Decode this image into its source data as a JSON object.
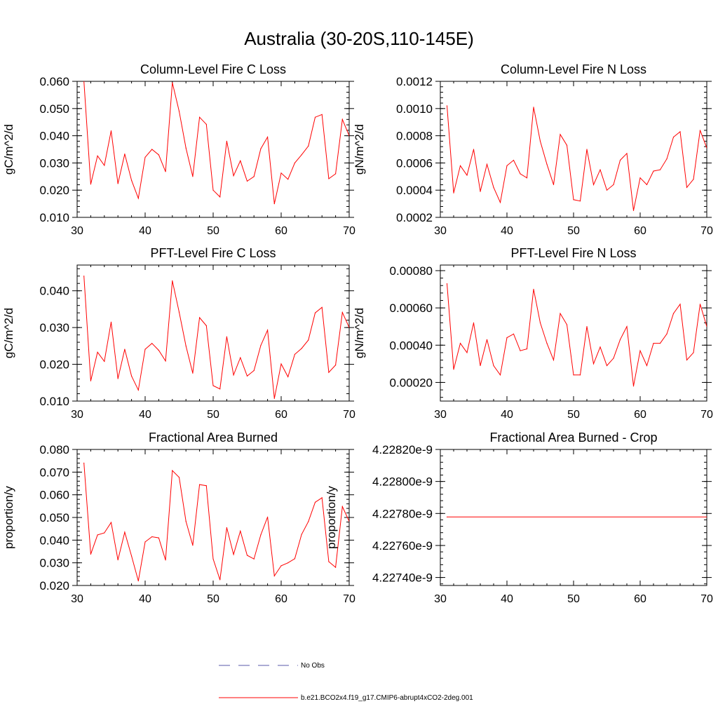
{
  "figure": {
    "title": "Australia (30-20S,110-145E)"
  },
  "legend": {
    "entries": [
      {
        "label": "No Obs",
        "color": "#5a5aa8",
        "style": "dashed"
      },
      {
        "label": "b.e21.BCO2x4.f19_g17.CMIP6-abrupt4xCO2-2deg.001",
        "color": "#ff0000",
        "style": "solid"
      }
    ]
  },
  "chart_data": [
    {
      "type": "line",
      "title": "Column-Level Fire C Loss",
      "xlabel": "",
      "ylabel": "gC/m^2/d",
      "xlim": [
        30,
        70
      ],
      "ylim": [
        0.01,
        0.06
      ],
      "xticks": [
        30,
        40,
        50,
        60,
        70
      ],
      "xtick_labels": [
        "30",
        "40",
        "50",
        "60",
        "70"
      ],
      "yticks": [
        0.01,
        0.02,
        0.03,
        0.04,
        0.05,
        0.06
      ],
      "ytick_labels": [
        "0.010",
        "0.020",
        "0.030",
        "0.040",
        "0.050",
        "0.060"
      ],
      "series": [
        {
          "name": "b.e21.BCO2x4.f19_g17.CMIP6-abrupt4xCO2-2deg.001",
          "color": "#ff0000",
          "x": [
            31,
            32,
            33,
            34,
            35,
            36,
            37,
            38,
            39,
            40,
            41,
            42,
            43,
            44,
            45,
            46,
            47,
            48,
            49,
            50,
            51,
            52,
            53,
            54,
            55,
            56,
            57,
            58,
            59,
            60,
            61,
            62,
            63,
            64,
            65,
            66,
            67,
            68,
            69,
            70
          ],
          "values": [
            0.06,
            0.0222,
            0.0326,
            0.0291,
            0.0418,
            0.0224,
            0.0333,
            0.0236,
            0.017,
            0.0321,
            0.035,
            0.033,
            0.0268,
            0.0595,
            0.049,
            0.0355,
            0.025,
            0.0468,
            0.0442,
            0.02,
            0.0175,
            0.038,
            0.0253,
            0.0308,
            0.0233,
            0.025,
            0.0352,
            0.0395,
            0.015,
            0.0263,
            0.024,
            0.03,
            0.033,
            0.0362,
            0.0468,
            0.0478,
            0.0242,
            0.026,
            0.046,
            0.04
          ]
        }
      ]
    },
    {
      "type": "line",
      "title": "Column-Level Fire N Loss",
      "xlabel": "",
      "ylabel": "gN/m^2/d",
      "xlim": [
        30,
        70
      ],
      "ylim": [
        0.0002,
        0.0012
      ],
      "xticks": [
        30,
        40,
        50,
        60,
        70
      ],
      "xtick_labels": [
        "30",
        "40",
        "50",
        "60",
        "70"
      ],
      "yticks": [
        0.0002,
        0.0004,
        0.0006,
        0.0008,
        0.001,
        0.0012
      ],
      "ytick_labels": [
        "0.0002",
        "0.0004",
        "0.0006",
        "0.0008",
        "0.0010",
        "0.0012"
      ],
      "series": [
        {
          "name": "b.e21.BCO2x4.f19_g17.CMIP6-abrupt4xCO2-2deg.001",
          "color": "#ff0000",
          "x": [
            31,
            32,
            33,
            34,
            35,
            36,
            37,
            38,
            39,
            40,
            41,
            42,
            43,
            44,
            45,
            46,
            47,
            48,
            49,
            50,
            51,
            52,
            53,
            54,
            55,
            56,
            57,
            58,
            59,
            60,
            61,
            62,
            63,
            64,
            65,
            66,
            67,
            68,
            69,
            70
          ],
          "values": [
            0.00102,
            0.00038,
            0.00058,
            0.00051,
            0.0007,
            0.00039,
            0.00059,
            0.00042,
            0.00031,
            0.00058,
            0.00062,
            0.00052,
            0.00049,
            0.00101,
            0.00076,
            0.00059,
            0.00044,
            0.00081,
            0.00073,
            0.00033,
            0.00032,
            0.0007,
            0.00044,
            0.00055,
            0.0004,
            0.00044,
            0.00062,
            0.00067,
            0.00025,
            0.00049,
            0.00044,
            0.00054,
            0.00055,
            0.00063,
            0.00079,
            0.00083,
            0.00042,
            0.00048,
            0.00084,
            0.00071
          ]
        }
      ]
    },
    {
      "type": "line",
      "title": "PFT-Level Fire C Loss",
      "xlabel": "",
      "ylabel": "gC/m^2/d",
      "xlim": [
        30,
        70
      ],
      "ylim": [
        0.01,
        0.047
      ],
      "xticks": [
        30,
        40,
        50,
        60,
        70
      ],
      "xtick_labels": [
        "30",
        "40",
        "50",
        "60",
        "70"
      ],
      "yticks": [
        0.01,
        0.02,
        0.03,
        0.04
      ],
      "ytick_labels": [
        "0.010",
        "0.020",
        "0.030",
        "0.040"
      ],
      "series": [
        {
          "name": "b.e21.BCO2x4.f19_g17.CMIP6-abrupt4xCO2-2deg.001",
          "color": "#ff0000",
          "x": [
            31,
            32,
            33,
            34,
            35,
            36,
            37,
            38,
            39,
            40,
            41,
            42,
            43,
            44,
            45,
            46,
            47,
            48,
            49,
            50,
            51,
            52,
            53,
            54,
            55,
            56,
            57,
            58,
            59,
            60,
            61,
            62,
            63,
            64,
            65,
            66,
            67,
            68,
            69,
            70
          ],
          "values": [
            0.044,
            0.0155,
            0.0233,
            0.0208,
            0.0315,
            0.0161,
            0.0241,
            0.0168,
            0.013,
            0.0241,
            0.0257,
            0.0238,
            0.0209,
            0.0427,
            0.0342,
            0.025,
            0.0176,
            0.0327,
            0.0305,
            0.0142,
            0.0133,
            0.0275,
            0.0171,
            0.0218,
            0.0168,
            0.0183,
            0.0251,
            0.0293,
            0.0107,
            0.0201,
            0.0166,
            0.0227,
            0.0243,
            0.0266,
            0.034,
            0.0355,
            0.0178,
            0.0198,
            0.0341,
            0.03
          ]
        }
      ]
    },
    {
      "type": "line",
      "title": "PFT-Level Fire N Loss",
      "xlabel": "",
      "ylabel": "gN/m^2/d",
      "xlim": [
        30,
        70
      ],
      "ylim": [
        0.0001,
        0.00083
      ],
      "xticks": [
        30,
        40,
        50,
        60,
        70
      ],
      "xtick_labels": [
        "30",
        "40",
        "50",
        "60",
        "70"
      ],
      "yticks": [
        0.0002,
        0.0004,
        0.0006,
        0.0008
      ],
      "ytick_labels": [
        "0.00020",
        "0.00040",
        "0.00060",
        "0.00080"
      ],
      "series": [
        {
          "name": "b.e21.BCO2x4.f19_g17.CMIP6-abrupt4xCO2-2deg.001",
          "color": "#ff0000",
          "x": [
            31,
            32,
            33,
            34,
            35,
            36,
            37,
            38,
            39,
            40,
            41,
            42,
            43,
            44,
            45,
            46,
            47,
            48,
            49,
            50,
            51,
            52,
            53,
            54,
            55,
            56,
            57,
            58,
            59,
            60,
            61,
            62,
            63,
            64,
            65,
            66,
            67,
            68,
            69,
            70
          ],
          "values": [
            0.00073,
            0.00027,
            0.00041,
            0.00036,
            0.00052,
            0.00029,
            0.00043,
            0.00029,
            0.00024,
            0.00044,
            0.00046,
            0.00037,
            0.00038,
            0.0007,
            0.00052,
            0.00041,
            0.00032,
            0.00057,
            0.00051,
            0.00024,
            0.00024,
            0.0005,
            0.0003,
            0.00039,
            0.00029,
            0.00033,
            0.00043,
            0.0005,
            0.00018,
            0.00037,
            0.00029,
            0.00041,
            0.00041,
            0.00046,
            0.00057,
            0.00062,
            0.00032,
            0.00036,
            0.00062,
            0.0005
          ]
        }
      ]
    },
    {
      "type": "line",
      "title": "Fractional Area Burned",
      "xlabel": "",
      "ylabel": "proportion/y",
      "xlim": [
        30,
        70
      ],
      "ylim": [
        0.02,
        0.08
      ],
      "xticks": [
        30,
        40,
        50,
        60,
        70
      ],
      "xtick_labels": [
        "30",
        "40",
        "50",
        "60",
        "70"
      ],
      "yticks": [
        0.02,
        0.03,
        0.04,
        0.05,
        0.06,
        0.07,
        0.08
      ],
      "ytick_labels": [
        "0.020",
        "0.030",
        "0.040",
        "0.050",
        "0.060",
        "0.070",
        "0.080"
      ],
      "series": [
        {
          "name": "b.e21.BCO2x4.f19_g17.CMIP6-abrupt4xCO2-2deg.001",
          "color": "#ff0000",
          "x": [
            31,
            32,
            33,
            34,
            35,
            36,
            37,
            38,
            39,
            40,
            41,
            42,
            43,
            44,
            45,
            46,
            47,
            48,
            49,
            50,
            51,
            52,
            53,
            54,
            55,
            56,
            57,
            58,
            59,
            60,
            61,
            62,
            63,
            64,
            65,
            66,
            67,
            68,
            69,
            70
          ],
          "values": [
            0.074,
            0.0338,
            0.0423,
            0.0432,
            0.0478,
            0.0313,
            0.0435,
            0.033,
            0.022,
            0.0392,
            0.0415,
            0.041,
            0.0312,
            0.0707,
            0.0677,
            0.0483,
            0.0377,
            0.0645,
            0.064,
            0.0317,
            0.0225,
            0.0455,
            0.0337,
            0.044,
            0.0333,
            0.0317,
            0.0423,
            0.0502,
            0.0242,
            0.0287,
            0.03,
            0.0318,
            0.0425,
            0.0482,
            0.0567,
            0.0587,
            0.0305,
            0.028,
            0.0548,
            0.0483
          ]
        }
      ]
    },
    {
      "type": "line",
      "title": "Fractional Area Burned - Crop",
      "xlabel": "",
      "ylabel": "proportion/y",
      "xlim": [
        30,
        70
      ],
      "ylim": [
        4.22735e-09,
        4.2282e-09
      ],
      "xticks": [
        30,
        40,
        50,
        60,
        70
      ],
      "xtick_labels": [
        "30",
        "40",
        "50",
        "60",
        "70"
      ],
      "yticks": [
        4.2274e-09,
        4.2276e-09,
        4.2278e-09,
        4.228e-09,
        4.2282e-09
      ],
      "ytick_labels": [
        "4.22740e-9",
        "4.22760e-9",
        "4.22780e-9",
        "4.22800e-9",
        "4.22820e-9"
      ],
      "series": [
        {
          "name": "b.e21.BCO2x4.f19_g17.CMIP6-abrupt4xCO2-2deg.001",
          "color": "#ff0000",
          "x": [
            31,
            70
          ],
          "values": [
            4.227778e-09,
            4.227778e-09
          ]
        }
      ]
    }
  ]
}
